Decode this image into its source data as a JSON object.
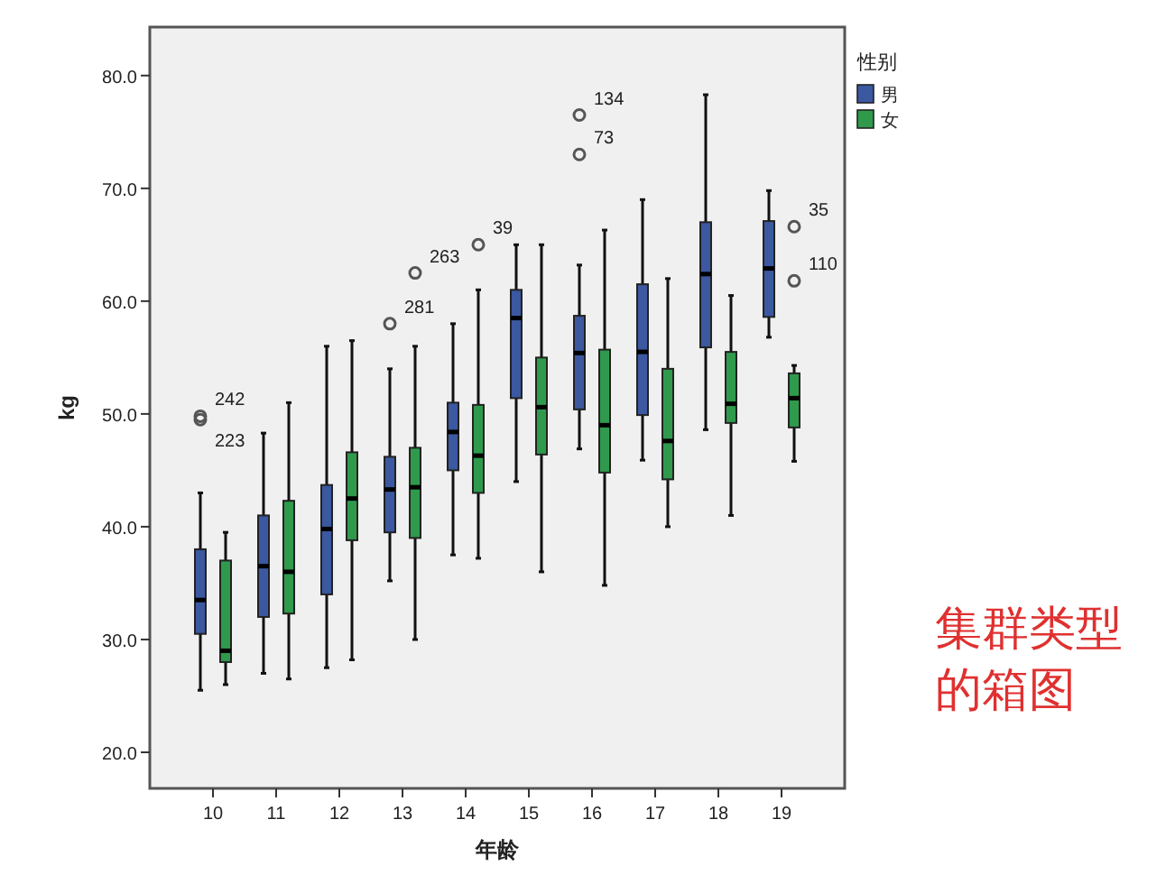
{
  "chart_data": {
    "type": "box",
    "xlabel": "年龄",
    "ylabel": "kg",
    "legend_title": "性别",
    "legend": "right",
    "grid": false,
    "marker": "circle",
    "categories": [
      "10",
      "11",
      "12",
      "13",
      "14",
      "15",
      "16",
      "17",
      "18",
      "19"
    ],
    "ylim": [
      16.8,
      84.3
    ],
    "yticks": [
      {
        "value": 20,
        "label": "20.0"
      },
      {
        "value": 30,
        "label": "30.0"
      },
      {
        "value": 40,
        "label": "40.0"
      },
      {
        "value": 50,
        "label": "50.0"
      },
      {
        "value": 60,
        "label": "60.0"
      },
      {
        "value": 70,
        "label": "70.0"
      },
      {
        "value": 80,
        "label": "80.0"
      }
    ],
    "series": [
      {
        "name": "男",
        "color": "#3b58a0",
        "boxes": [
          {
            "low": 25.5,
            "q1": 30.5,
            "median": 33.5,
            "q3": 38,
            "high": 43,
            "outliers": [
              49.8,
              49.5
            ]
          },
          {
            "low": 27,
            "q1": 32,
            "median": 36.5,
            "q3": 41,
            "high": 48.3
          },
          {
            "low": 27.5,
            "q1": 34,
            "median": 39.8,
            "q3": 43.7,
            "high": 56
          },
          {
            "low": 35.2,
            "q1": 39.5,
            "median": 43.3,
            "q3": 46.2,
            "high": 54,
            "outliers": [
              58
            ]
          },
          {
            "low": 37.5,
            "q1": 45,
            "median": 48.4,
            "q3": 51,
            "high": 58
          },
          {
            "low": 44,
            "q1": 51.4,
            "median": 58.5,
            "q3": 61,
            "high": 65
          },
          {
            "low": 46.9,
            "q1": 50.4,
            "median": 55.4,
            "q3": 58.7,
            "high": 63.2,
            "outliers": [
              76.5,
              73
            ]
          },
          {
            "low": 45.9,
            "q1": 49.9,
            "median": 55.5,
            "q3": 61.5,
            "high": 69
          },
          {
            "low": 48.6,
            "q1": 55.9,
            "median": 62.4,
            "q3": 67,
            "high": 78.3
          },
          {
            "low": 56.8,
            "q1": 58.6,
            "median": 62.9,
            "q3": 67.1,
            "high": 69.8
          }
        ]
      },
      {
        "name": "女",
        "color": "#2f9a4c",
        "boxes": [
          {
            "low": 26,
            "q1": 28,
            "median": 29,
            "q3": 37,
            "high": 39.5
          },
          {
            "low": 26.5,
            "q1": 32.3,
            "median": 36,
            "q3": 42.3,
            "high": 51
          },
          {
            "low": 28.2,
            "q1": 38.8,
            "median": 42.5,
            "q3": 46.6,
            "high": 56.5
          },
          {
            "low": 30,
            "q1": 39,
            "median": 43.5,
            "q3": 47,
            "high": 56,
            "outliers": [
              62.5
            ]
          },
          {
            "low": 37.2,
            "q1": 43,
            "median": 46.3,
            "q3": 50.8,
            "high": 61,
            "outliers": [
              65
            ]
          },
          {
            "low": 36,
            "q1": 46.4,
            "median": 50.6,
            "q3": 55,
            "high": 65
          },
          {
            "low": 34.8,
            "q1": 44.8,
            "median": 49,
            "q3": 55.7,
            "high": 66.3
          },
          {
            "low": 40,
            "q1": 44.2,
            "median": 47.6,
            "q3": 54,
            "high": 62
          },
          {
            "low": 41,
            "q1": 49.2,
            "median": 50.9,
            "q3": 55.5,
            "high": 60.5
          },
          {
            "low": 45.8,
            "q1": 48.8,
            "median": 51.4,
            "q3": 53.6,
            "high": 54.3,
            "outliers": [
              66.6,
              61.8
            ]
          }
        ]
      }
    ],
    "annotations": [
      "242",
      "223",
      "281",
      "134",
      "73",
      "263",
      "39",
      "35",
      "110",
      "集群类型的箱图"
    ]
  }
}
